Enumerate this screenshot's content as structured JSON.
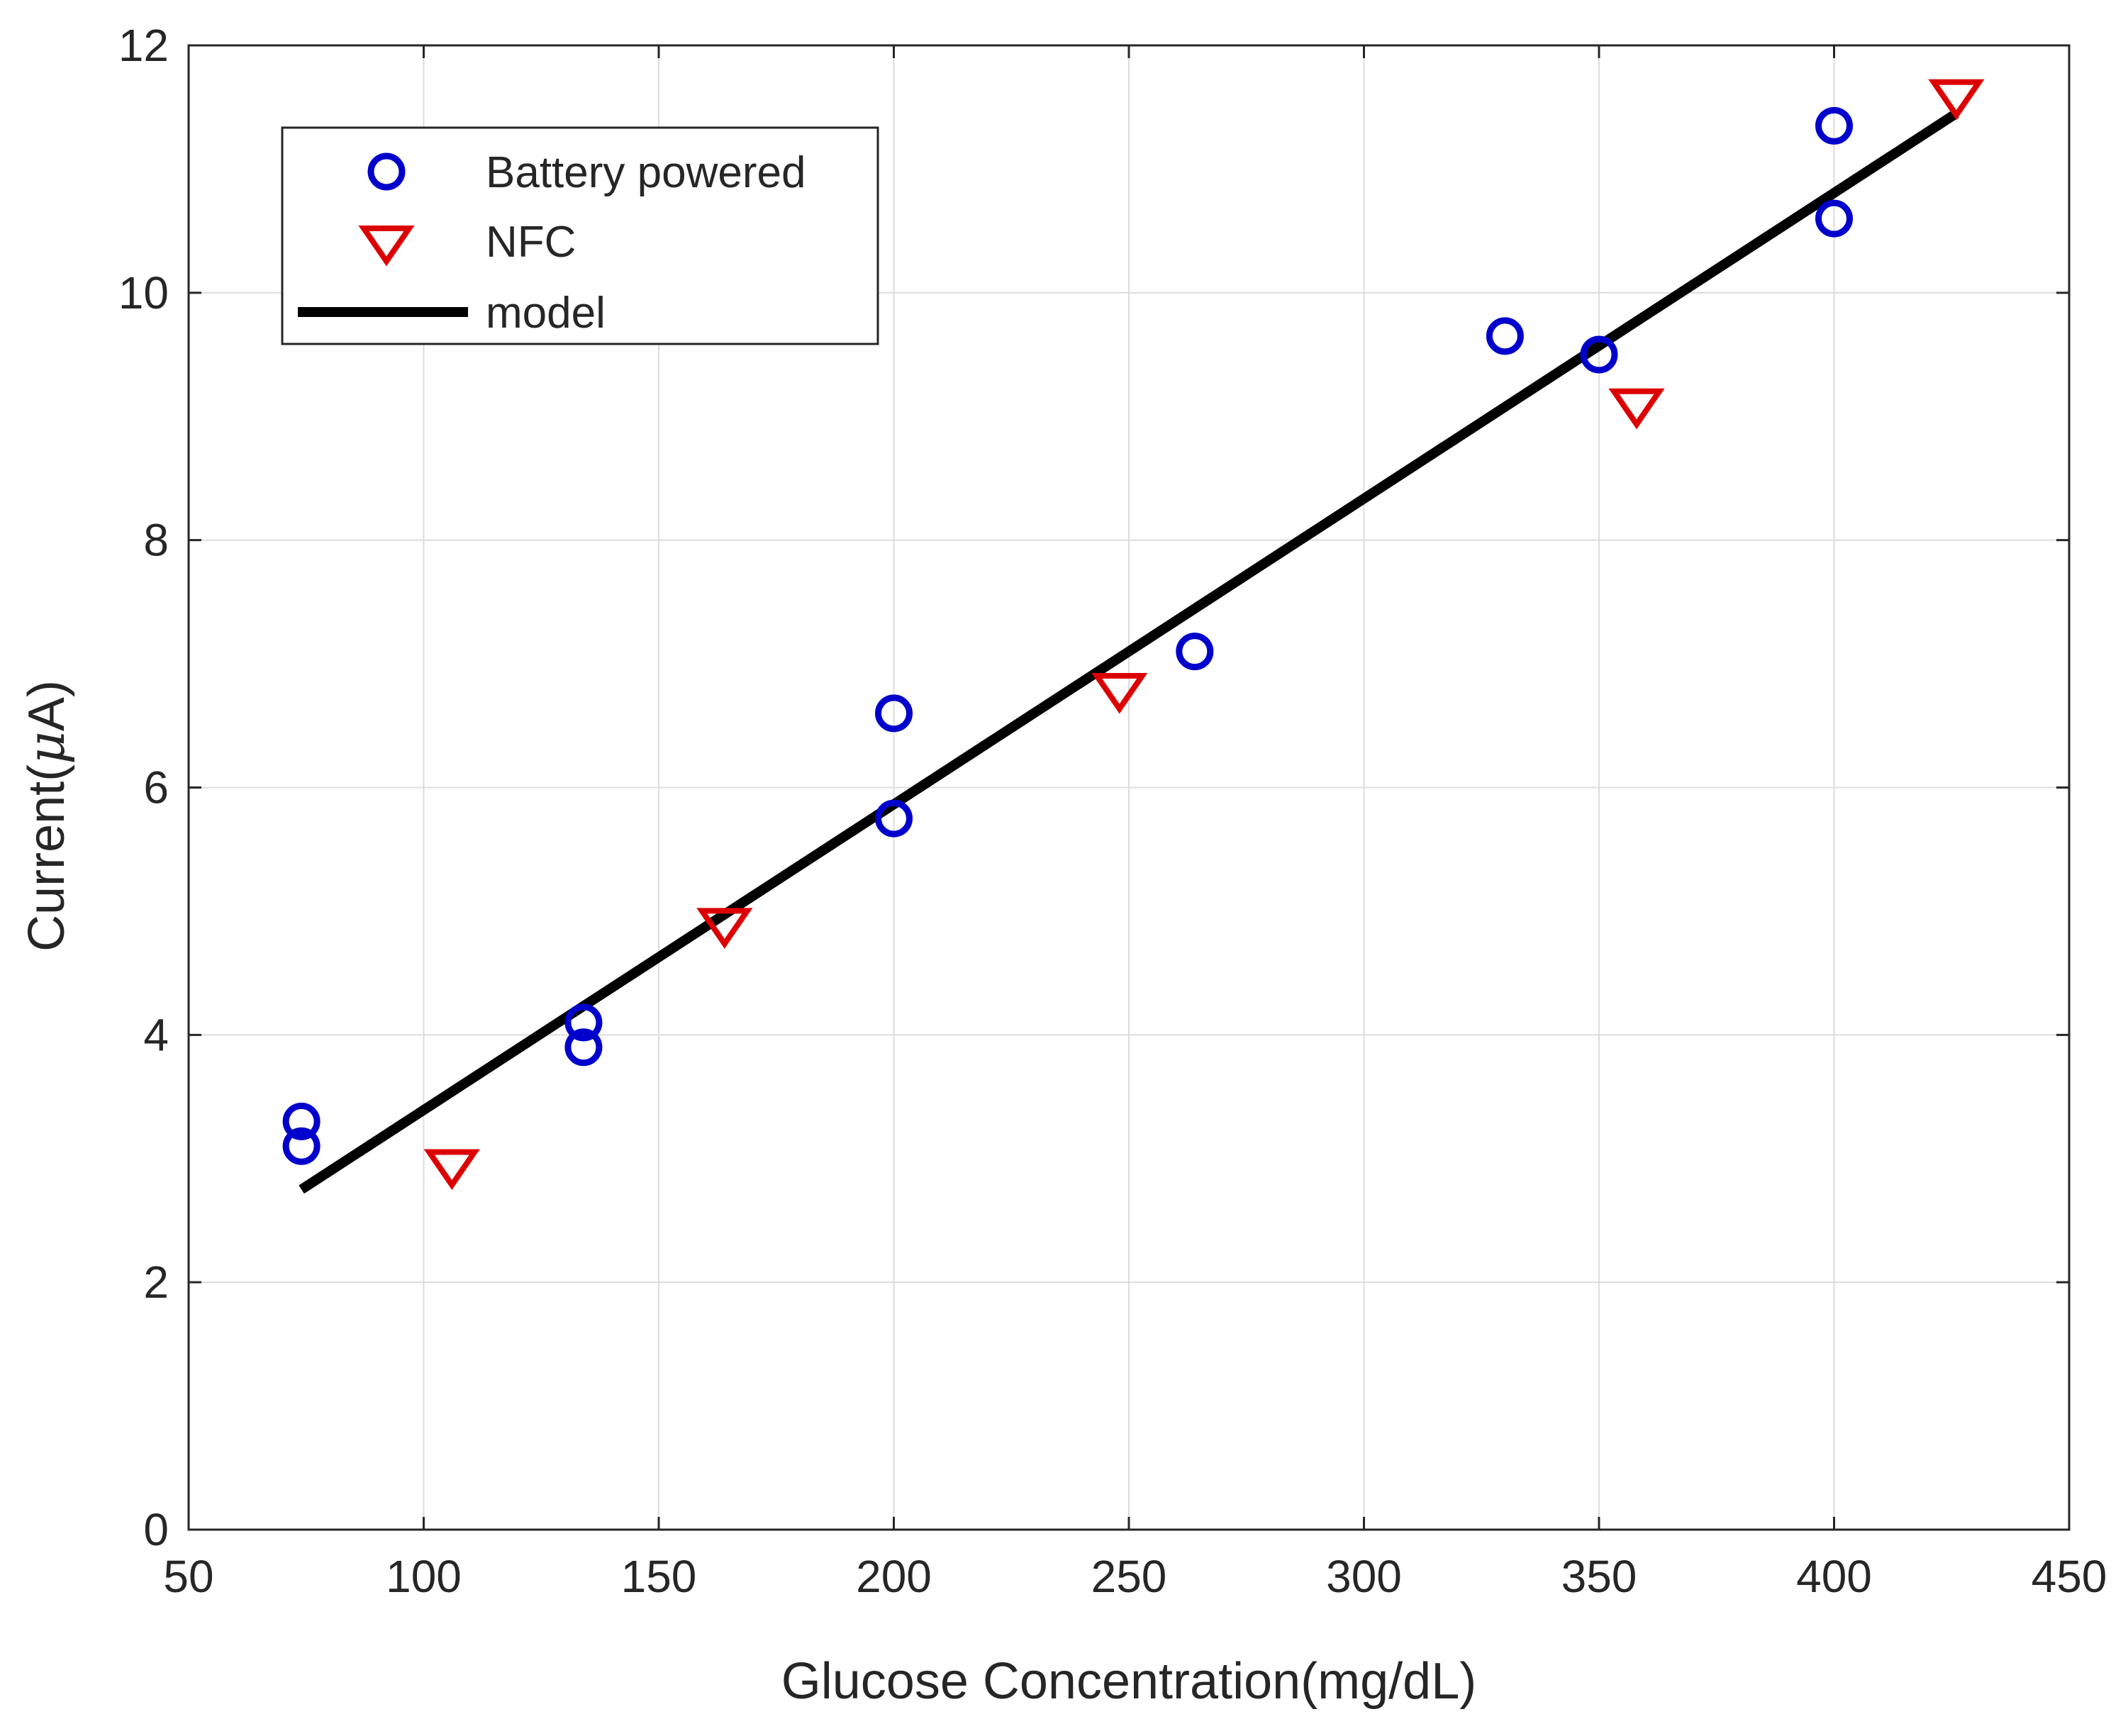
{
  "chart_data": {
    "type": "scatter",
    "title": "",
    "xlabel": "Glucose Concentration(mg/dL)",
    "ylabel_prefix": "Current(",
    "ylabel_mu": "μ",
    "ylabel_suffix": "A)",
    "xlim": [
      50,
      450
    ],
    "ylim": [
      0,
      12
    ],
    "xticks": [
      50,
      100,
      150,
      200,
      250,
      300,
      350,
      400,
      450
    ],
    "yticks": [
      0,
      2,
      4,
      6,
      8,
      10,
      12
    ],
    "xtick_labels": [
      "50",
      "100",
      "150",
      "200",
      "250",
      "300",
      "350",
      "400",
      "450"
    ],
    "ytick_labels": [
      "0",
      "2",
      "4",
      "6",
      "8",
      "10",
      "12"
    ],
    "grid": true,
    "legend_position": "top-left",
    "series": [
      {
        "name": "Battery powered",
        "marker": "circle-open",
        "color": "#0000cc",
        "points": [
          {
            "x": 74,
            "y": 3.3
          },
          {
            "x": 74,
            "y": 3.1
          },
          {
            "x": 134,
            "y": 4.1
          },
          {
            "x": 134,
            "y": 3.9
          },
          {
            "x": 200,
            "y": 6.6
          },
          {
            "x": 200,
            "y": 5.75
          },
          {
            "x": 264,
            "y": 7.1
          },
          {
            "x": 330,
            "y": 9.65
          },
          {
            "x": 350,
            "y": 9.5
          },
          {
            "x": 400,
            "y": 11.35
          },
          {
            "x": 400,
            "y": 10.6
          }
        ]
      },
      {
        "name": "NFC",
        "marker": "triangle-down-open",
        "color": "#dd0000",
        "points": [
          {
            "x": 106,
            "y": 2.95
          },
          {
            "x": 164,
            "y": 4.9
          },
          {
            "x": 248,
            "y": 6.8
          },
          {
            "x": 358,
            "y": 9.1
          },
          {
            "x": 426,
            "y": 11.6
          }
        ]
      },
      {
        "name": "model",
        "marker": "line",
        "color": "#000000",
        "points": [
          {
            "x": 74,
            "y": 2.75
          },
          {
            "x": 426,
            "y": 11.45
          }
        ]
      }
    ]
  }
}
